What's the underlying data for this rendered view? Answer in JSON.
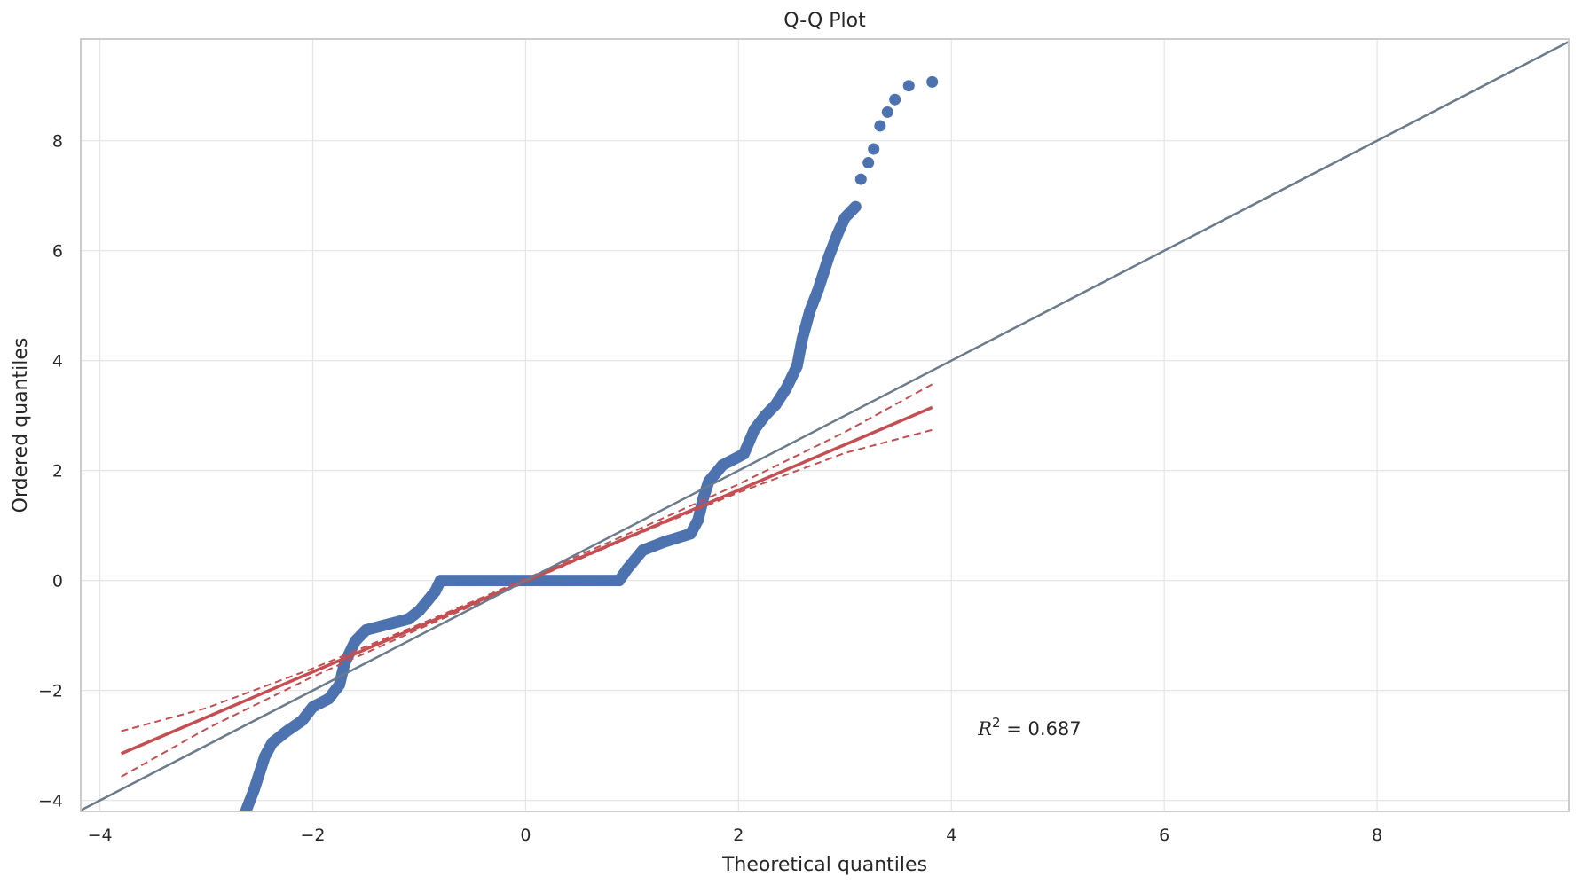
{
  "chart_data": {
    "type": "scatter",
    "title": "Q-Q Plot",
    "xlabel": "Theoretical quantiles",
    "ylabel": "Ordered quantiles",
    "xlim": [
      -4.18,
      9.8
    ],
    "ylim": [
      -4.2,
      9.85
    ],
    "xticks": [
      -4,
      -2,
      0,
      2,
      4,
      6,
      8
    ],
    "yticks": [
      -4,
      -2,
      0,
      2,
      4,
      6,
      8
    ],
    "grid": true,
    "annotation": {
      "text": "R² = 0.687",
      "var": "R",
      "sup": "2",
      "rest": " = 0.687",
      "x": 4.25,
      "y": -2.7
    },
    "colors": {
      "points": "#4c72b0",
      "fit": "#c44e52",
      "reference": "#6b7b8c",
      "grid": "#e5e5e5",
      "frame": "#cccccc"
    },
    "series": [
      {
        "kind": "points",
        "points": [
          [
            -2.63,
            -4.2
          ],
          [
            -2.55,
            -3.8
          ],
          [
            -2.5,
            -3.5
          ],
          [
            -2.45,
            -3.2
          ],
          [
            -2.38,
            -2.95
          ],
          [
            -2.25,
            -2.75
          ],
          [
            -2.1,
            -2.55
          ],
          [
            -2.0,
            -2.3
          ],
          [
            -1.85,
            -2.15
          ],
          [
            -1.75,
            -1.9
          ],
          [
            -1.7,
            -1.5
          ],
          [
            -1.6,
            -1.1
          ],
          [
            -1.5,
            -0.9
          ],
          [
            -1.3,
            -0.8
          ],
          [
            -1.1,
            -0.7
          ],
          [
            -1.0,
            -0.55
          ],
          [
            -0.85,
            -0.2
          ],
          [
            -0.8,
            0.0
          ],
          [
            0.88,
            0.0
          ],
          [
            0.95,
            0.2
          ],
          [
            1.1,
            0.55
          ],
          [
            1.3,
            0.7
          ],
          [
            1.55,
            0.85
          ],
          [
            1.62,
            1.1
          ],
          [
            1.67,
            1.5
          ],
          [
            1.72,
            1.8
          ],
          [
            1.85,
            2.1
          ],
          [
            2.05,
            2.3
          ],
          [
            2.15,
            2.75
          ],
          [
            2.25,
            3.0
          ],
          [
            2.35,
            3.2
          ],
          [
            2.45,
            3.5
          ],
          [
            2.55,
            3.9
          ],
          [
            2.6,
            4.4
          ],
          [
            2.67,
            4.9
          ],
          [
            2.75,
            5.3
          ],
          [
            2.85,
            5.9
          ],
          [
            2.93,
            6.3
          ],
          [
            3.0,
            6.6
          ],
          [
            3.1,
            6.8
          ],
          [
            3.15,
            7.3
          ],
          [
            3.22,
            7.6
          ],
          [
            3.27,
            7.85
          ],
          [
            3.33,
            8.27
          ],
          [
            3.4,
            8.52
          ],
          [
            3.47,
            8.75
          ],
          [
            3.6,
            9.0
          ],
          [
            3.82,
            9.07
          ]
        ]
      },
      {
        "kind": "fit",
        "x": [
          -3.8,
          3.82
        ],
        "y": [
          -3.15,
          3.15
        ]
      },
      {
        "kind": "ci_upper",
        "x": [
          -3.8,
          -3.0,
          -2.0,
          -1.0,
          0.0,
          1.0,
          2.0,
          3.0,
          3.82
        ],
        "y": [
          -2.74,
          -2.32,
          -1.6,
          -0.8,
          0.03,
          0.88,
          1.75,
          2.7,
          3.57
        ]
      },
      {
        "kind": "ci_lower",
        "x": [
          -3.8,
          -3.0,
          -2.0,
          -1.0,
          0.0,
          1.0,
          2.0,
          3.0,
          3.82
        ],
        "y": [
          -3.57,
          -2.7,
          -1.75,
          -0.88,
          -0.03,
          0.8,
          1.6,
          2.32,
          2.74
        ]
      },
      {
        "kind": "reference",
        "x": [
          -4.18,
          9.8
        ],
        "y": [
          -4.18,
          9.8
        ]
      }
    ]
  }
}
